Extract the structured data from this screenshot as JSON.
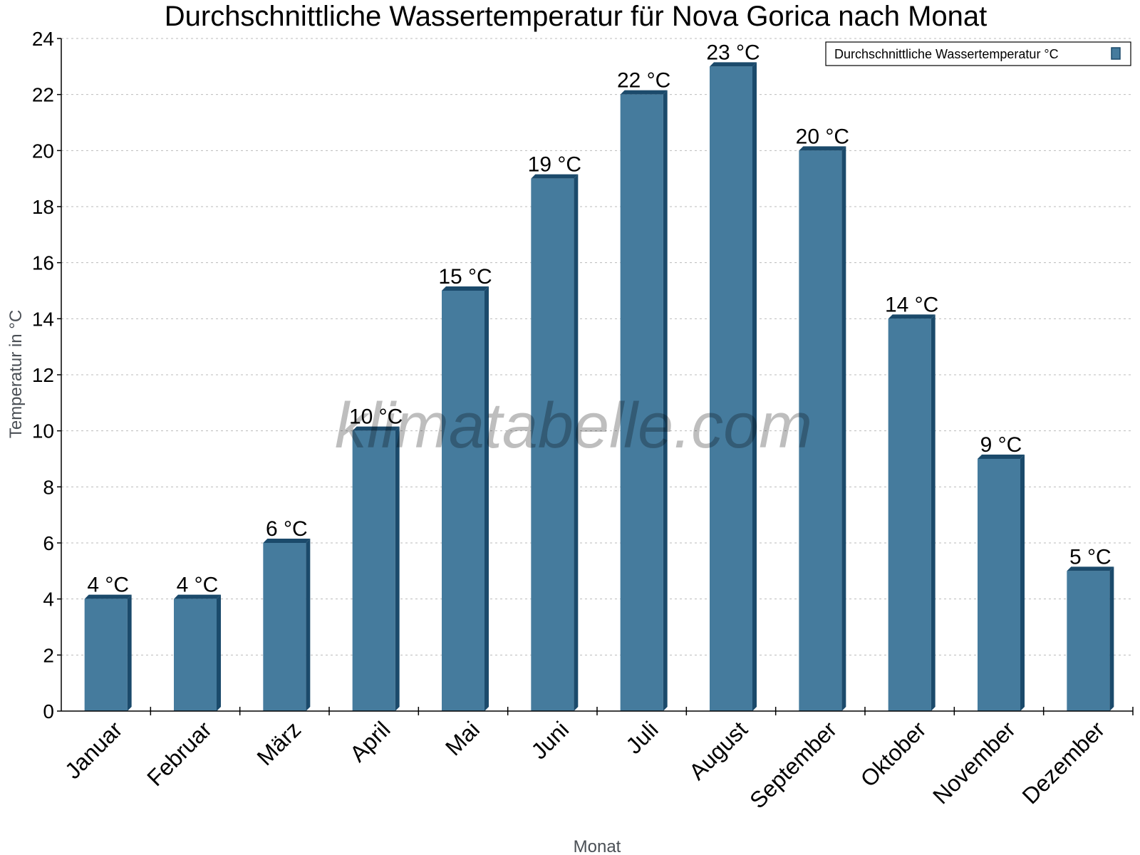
{
  "chart_data": {
    "type": "bar",
    "title": "Durchschnittliche Wassertemperatur für Nova Gorica nach Monat",
    "xlabel": "Monat",
    "ylabel": "Temperatur in °C",
    "categories": [
      "Januar",
      "Februar",
      "März",
      "April",
      "Mai",
      "Juni",
      "Juli",
      "August",
      "September",
      "Oktober",
      "November",
      "Dezember"
    ],
    "series": [
      {
        "name": "Durchschnittliche Wassertemperatur °C",
        "values": [
          4,
          4,
          6,
          10,
          15,
          19,
          22,
          23,
          20,
          14,
          9,
          5
        ],
        "color": "#457b9d",
        "side_color": "#1b4a6b"
      }
    ],
    "data_labels": [
      "4 °C",
      "4 °C",
      "6 °C",
      "10 °C",
      "15 °C",
      "19 °C",
      "22 °C",
      "23 °C",
      "20 °C",
      "14 °C",
      "9 °C",
      "5 °C"
    ],
    "ylim": [
      0,
      24
    ],
    "yticks": [
      0,
      2,
      4,
      6,
      8,
      10,
      12,
      14,
      16,
      18,
      20,
      22,
      24
    ],
    "grid": true,
    "legend_position": "top-right",
    "watermark": "klimatabelle.com"
  }
}
